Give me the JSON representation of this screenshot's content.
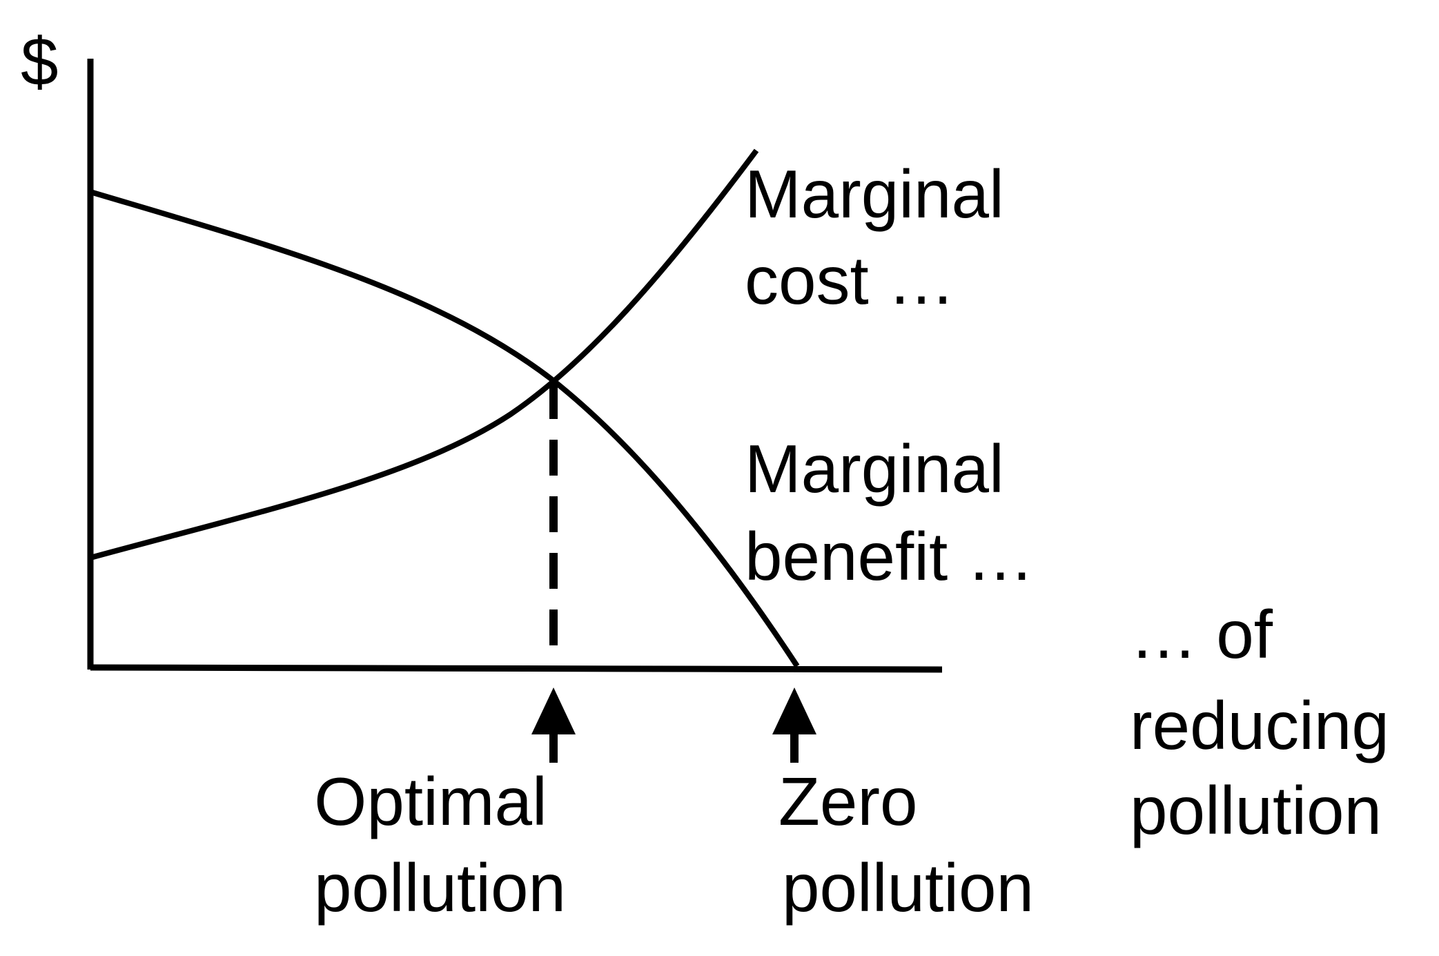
{
  "diagram": {
    "y_axis_label": "$",
    "curves": {
      "marginal_cost": {
        "line1": "Marginal",
        "line2": "cost …"
      },
      "marginal_benefit": {
        "line1": "Marginal",
        "line2": "benefit …"
      }
    },
    "x_axis_label": {
      "line1": "… of",
      "line2": "reducing",
      "line3": "pollution"
    },
    "markers": {
      "optimal": {
        "line1": "Optimal",
        "line2": "pollution"
      },
      "zero": {
        "line1": "Zero",
        "line2": "pollution"
      }
    },
    "colors": {
      "ink": "#000000",
      "background": "#ffffff"
    }
  }
}
